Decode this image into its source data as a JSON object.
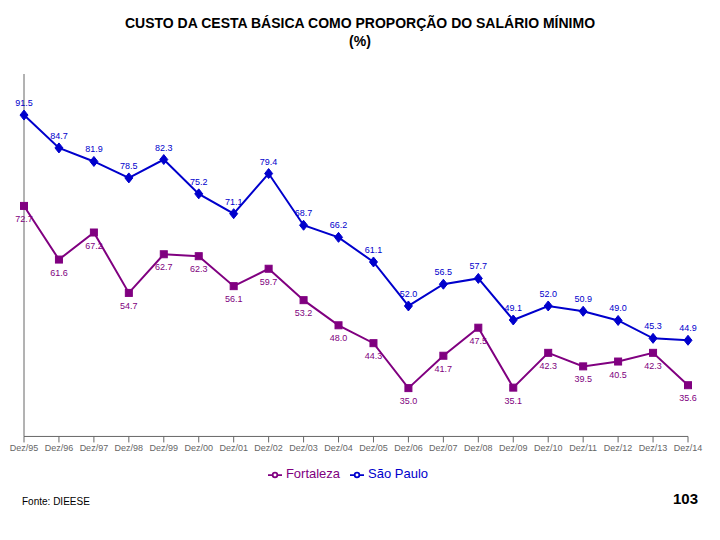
{
  "chart_data": {
    "type": "line",
    "title": "CUSTO DA CESTA BÁSICA COMO PROPORÇÃO DO SALÁRIO MÍNIMO",
    "subtitle": "(%)",
    "categories": [
      "Dez/95",
      "Dez/96",
      "Dez/97",
      "Dez/98",
      "Dez/99",
      "Dez/00",
      "Dez/01",
      "Dez/02",
      "Dez/03",
      "Dez/04",
      "Dez/05",
      "Dez/06",
      "Dez/07",
      "Dez/08",
      "Dez/09",
      "Dez/10",
      "Dez/11",
      "Dez/12",
      "Dez/13",
      "Dez/14"
    ],
    "series": [
      {
        "name": "São Paulo",
        "color": "#0000CC",
        "marker": "diamond",
        "values": [
          91.5,
          84.7,
          81.9,
          78.5,
          82.3,
          75.2,
          71.1,
          79.4,
          68.7,
          66.2,
          61.1,
          52.0,
          56.5,
          57.7,
          49.1,
          52.0,
          50.9,
          49.0,
          45.3,
          44.9
        ],
        "value_labels": [
          "91.5",
          "84.7",
          "81.9",
          "78.5",
          "82.3",
          "75.2",
          "71.1",
          "79.4",
          "68.7",
          "66.2",
          "61.1",
          "52.0",
          "56.5",
          "57.7",
          "49.1",
          "52.0",
          "50.9",
          "49.0",
          "45.3",
          "44.9"
        ]
      },
      {
        "name": "Fortaleza",
        "color": "#800080",
        "marker": "square",
        "values": [
          72.7,
          61.6,
          67.2,
          54.7,
          62.7,
          62.3,
          56.1,
          59.7,
          53.2,
          48.0,
          44.3,
          35.0,
          41.7,
          47.5,
          35.1,
          42.3,
          39.5,
          40.5,
          42.3,
          35.6
        ],
        "value_labels": [
          "72.7",
          "61.6",
          "67.2",
          "54.7",
          "62.7",
          "62.3",
          "56.1",
          "59.7",
          "53.2",
          "48.0",
          "44.3",
          "35.0",
          "41.7",
          "47.5",
          "35.1",
          "42.3",
          "39.5",
          "40.5",
          "42.3",
          "35.6"
        ]
      }
    ],
    "ylim": [
      25,
      100
    ],
    "data_labels": true,
    "tick_labels": "x",
    "grid": false,
    "legend": "bottom",
    "annotations": [
      "Fonte: DIEESE",
      "103"
    ]
  }
}
